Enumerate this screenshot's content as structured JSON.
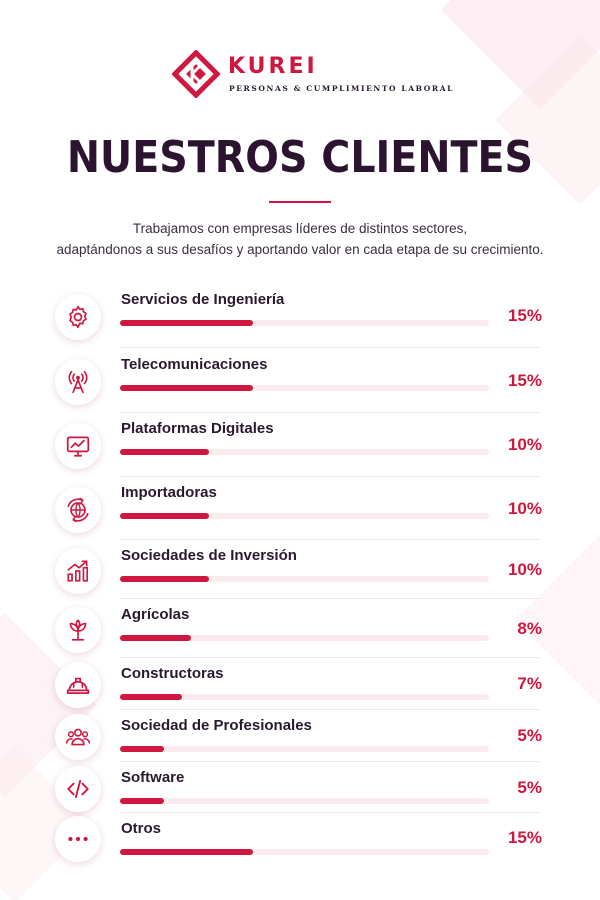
{
  "brand": {
    "name": "KUREI",
    "tagline": "PERSONAS & CUMPLIMIENTO LABORAL"
  },
  "title": "NUESTROS CLIENTES",
  "subtitle": {
    "line1": "Trabajamos con empresas líderes de distintos sectores,",
    "line2": "adaptándonos a sus desafíos y aportando valor en cada etapa de su crecimiento."
  },
  "colors": {
    "accent": "#d0173f",
    "track": "#fbeaee",
    "title": "#2c1430"
  },
  "chart_data": {
    "type": "bar",
    "title": "NUESTROS CLIENTES",
    "xlabel": "",
    "ylabel": "",
    "ylim": [
      0,
      100
    ],
    "categories": [
      "Servicios de Ingeniería",
      "Telecomunicaciones",
      "Plataformas Digitales",
      "Importadoras",
      "Sociedades de Inversión",
      "Agrícolas",
      "Constructoras",
      "Sociedad de Profesionales",
      "Software",
      "Otros"
    ],
    "values": [
      15,
      15,
      10,
      10,
      10,
      8,
      7,
      5,
      5,
      15
    ],
    "labels": [
      "15%",
      "15%",
      "10%",
      "10%",
      "10%",
      "8%",
      "7%",
      "5%",
      "5%",
      "15%"
    ],
    "icons": [
      "gear-icon",
      "antenna-icon",
      "monitor-chart-icon",
      "globe-arrows-icon",
      "growth-chart-icon",
      "sprout-icon",
      "hard-hat-icon",
      "people-icon",
      "code-icon",
      "dots-icon"
    ]
  }
}
